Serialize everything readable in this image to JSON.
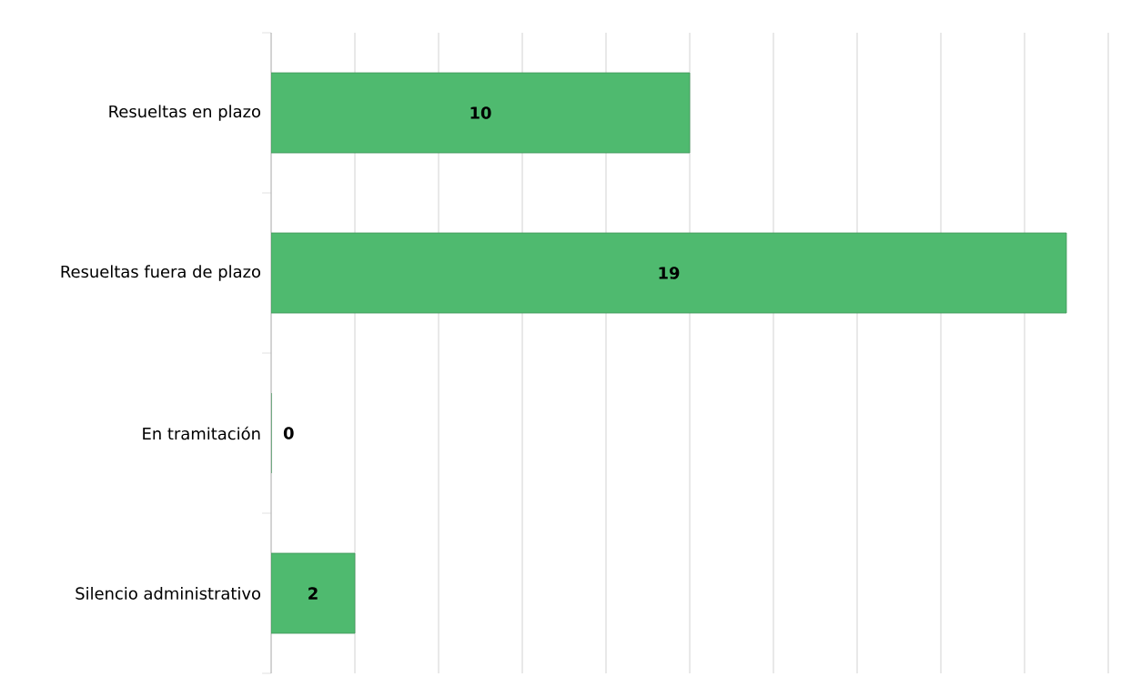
{
  "chart_data": {
    "type": "bar",
    "orientation": "horizontal",
    "categories": [
      "Resueltas en plazo",
      "Resueltas fuera de plazo",
      "En tramitación",
      "Silencio administrativo"
    ],
    "values": [
      10,
      19,
      0,
      2
    ],
    "color": "#4fba6f",
    "xlim": [
      0,
      20
    ],
    "xticks": [
      {
        "value": 0,
        "label": null
      },
      {
        "value": 2,
        "label": null
      },
      {
        "value": 4,
        "label": null
      },
      {
        "value": 6,
        "label": null
      },
      {
        "value": 8,
        "label": null
      },
      {
        "value": 10,
        "label": null
      },
      {
        "value": 12,
        "label": null
      },
      {
        "value": 14,
        "label": null
      },
      {
        "value": 16,
        "label": null
      },
      {
        "value": 18,
        "label": null
      },
      {
        "value": 20,
        "label": null
      }
    ],
    "grid": "x",
    "tick_labels": "y",
    "data_labels": true
  }
}
